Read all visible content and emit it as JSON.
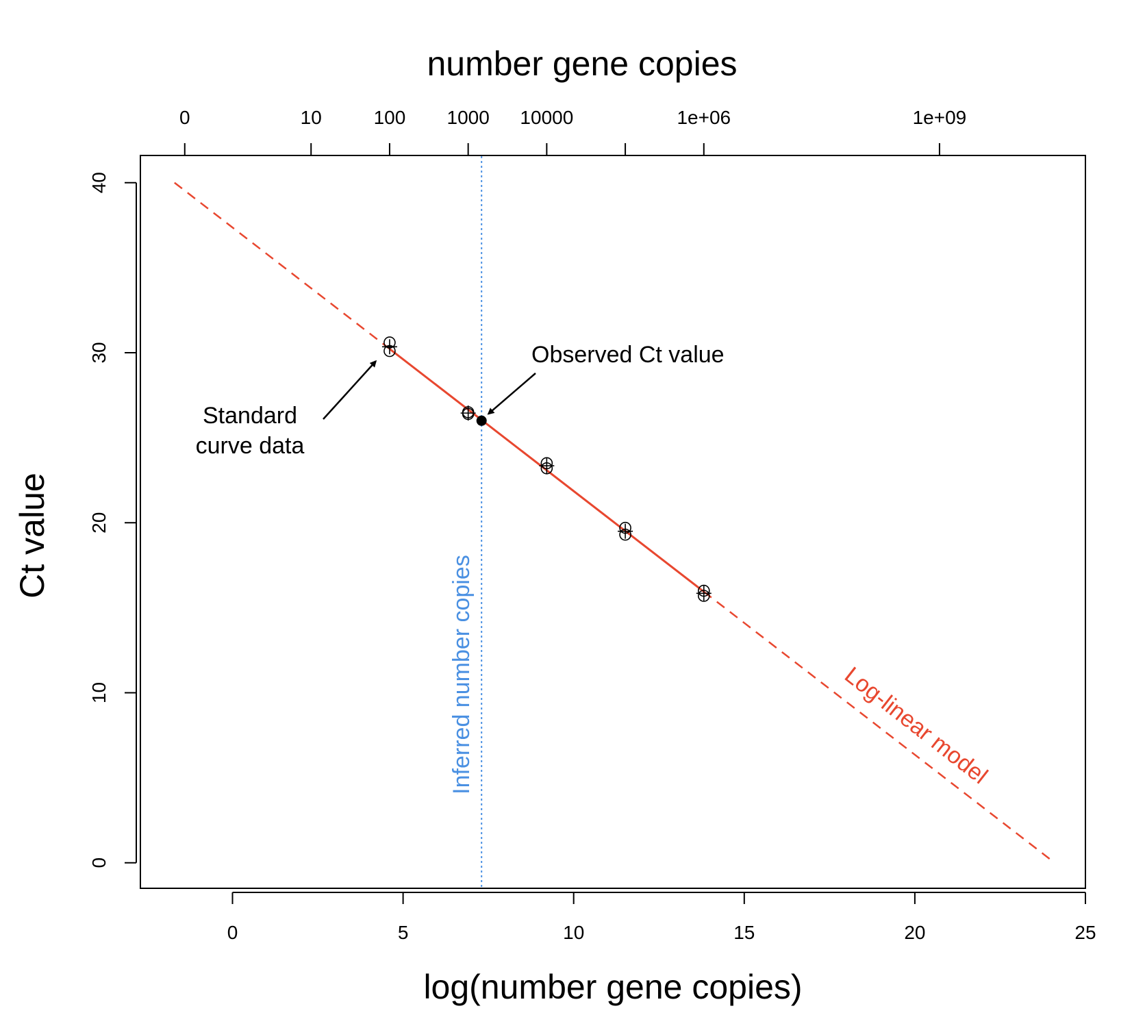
{
  "chart_data": {
    "type": "scatter",
    "title": "number gene copies",
    "xlabel": "log(number gene copies)",
    "ylabel": "Ct value",
    "xlim": [
      -2.7,
      25
    ],
    "ylim": [
      -1.5,
      41.6
    ],
    "grid": false,
    "x_ticks": [
      {
        "value": 0,
        "label": "0"
      },
      {
        "value": 5,
        "label": "5"
      },
      {
        "value": 10,
        "label": "10"
      },
      {
        "value": 15,
        "label": "15"
      },
      {
        "value": 20,
        "label": "20"
      },
      {
        "value": 25,
        "label": "25"
      }
    ],
    "y_ticks": [
      {
        "value": 0,
        "label": "0"
      },
      {
        "value": 10,
        "label": "10"
      },
      {
        "value": 20,
        "label": "20"
      },
      {
        "value": 30,
        "label": "30"
      },
      {
        "value": 40,
        "label": "40"
      }
    ],
    "top_axis": {
      "label": "number gene copies",
      "ticks": [
        {
          "value": -1.4,
          "label": "0"
        },
        {
          "value": 2.3026,
          "label": "10"
        },
        {
          "value": 4.6052,
          "label": "100"
        },
        {
          "value": 6.9078,
          "label": "1000"
        },
        {
          "value": 9.2103,
          "label": "10000"
        },
        {
          "value": 11.5129,
          "label": ""
        },
        {
          "value": 13.8155,
          "label": "1e+06"
        },
        {
          "value": 20.7233,
          "label": "1e+09"
        }
      ]
    },
    "series": [
      {
        "kind": "standard-curve-points",
        "marker": "circle-open",
        "points": [
          {
            "x": 4.6052,
            "y": 30.6
          },
          {
            "x": 4.6052,
            "y": 30.1
          },
          {
            "x": 6.9078,
            "y": 26.5
          },
          {
            "x": 6.9078,
            "y": 26.4
          },
          {
            "x": 9.2103,
            "y": 23.5
          },
          {
            "x": 9.2103,
            "y": 23.2
          },
          {
            "x": 11.5129,
            "y": 19.7
          },
          {
            "x": 11.5129,
            "y": 19.3
          },
          {
            "x": 13.8155,
            "y": 16.0
          },
          {
            "x": 13.8155,
            "y": 15.7
          }
        ]
      },
      {
        "kind": "standard-curve-means",
        "marker": "plus",
        "points": [
          {
            "x": 4.6052,
            "y": 30.35
          },
          {
            "x": 6.9078,
            "y": 26.45
          },
          {
            "x": 9.2103,
            "y": 23.35
          },
          {
            "x": 11.5129,
            "y": 19.5
          },
          {
            "x": 13.8155,
            "y": 15.85
          }
        ]
      },
      {
        "kind": "observed",
        "marker": "circle-filled",
        "points": [
          {
            "x": 7.3,
            "y": 26.0
          }
        ]
      }
    ],
    "model_line": {
      "label": "Log-linear model",
      "color": "#e8472f",
      "x_start": -1.7,
      "y_start": 40.0,
      "x_end": 24.1,
      "y_end": 0.0,
      "solid_from_x": 4.6052,
      "solid_to_x": 13.8155
    },
    "inferred_line": {
      "label": "Inferred number copies",
      "x": 7.3,
      "color": "#4a90e2"
    },
    "annotations": [
      {
        "text_lines": [
          "Standard",
          "curve data"
        ],
        "arrow_to": {
          "x": 4.2,
          "y": 29.5
        }
      },
      {
        "text_lines": [
          "Observed Ct value"
        ],
        "arrow_to": {
          "x": 7.5,
          "y": 26.4
        }
      }
    ]
  }
}
